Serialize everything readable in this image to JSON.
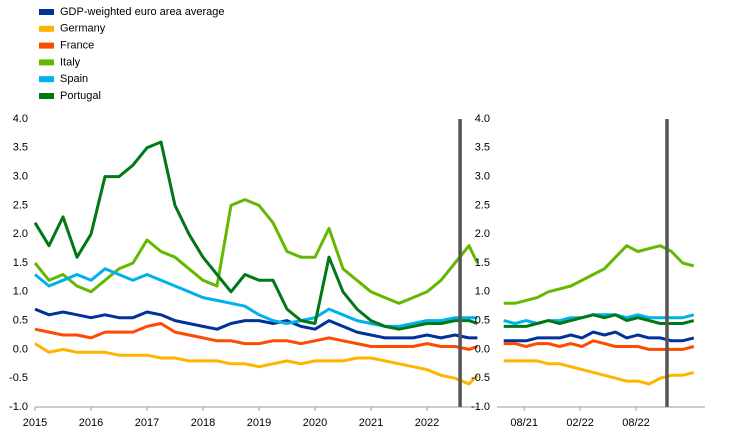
{
  "chart_data": [
    {
      "type": "line",
      "legend": "top-left",
      "x": [
        2015.0,
        2015.25,
        2015.5,
        2015.75,
        2016.0,
        2016.25,
        2016.5,
        2016.75,
        2017.0,
        2017.25,
        2017.5,
        2017.75,
        2018.0,
        2018.25,
        2018.5,
        2018.75,
        2019.0,
        2019.25,
        2019.5,
        2019.75,
        2020.0,
        2020.25,
        2020.5,
        2020.75,
        2021.0,
        2021.25,
        2021.5,
        2021.75,
        2022.0,
        2022.25,
        2022.5,
        2022.75,
        2022.9
      ],
      "series": [
        {
          "name": "GDP-weighted euro area average",
          "color": "#003299",
          "values": [
            0.7,
            0.6,
            0.65,
            0.6,
            0.55,
            0.6,
            0.55,
            0.55,
            0.65,
            0.6,
            0.5,
            0.45,
            0.4,
            0.35,
            0.45,
            0.5,
            0.5,
            0.45,
            0.5,
            0.4,
            0.35,
            0.5,
            0.4,
            0.3,
            0.25,
            0.2,
            0.2,
            0.2,
            0.25,
            0.2,
            0.25,
            0.2,
            0.2
          ]
        },
        {
          "name": "Germany",
          "color": "#ffb400",
          "values": [
            0.1,
            -0.05,
            0.0,
            -0.05,
            -0.05,
            -0.05,
            -0.1,
            -0.1,
            -0.1,
            -0.15,
            -0.15,
            -0.2,
            -0.2,
            -0.2,
            -0.25,
            -0.25,
            -0.3,
            -0.25,
            -0.2,
            -0.25,
            -0.2,
            -0.2,
            -0.2,
            -0.15,
            -0.15,
            -0.2,
            -0.25,
            -0.3,
            -0.35,
            -0.45,
            -0.5,
            -0.6,
            -0.45
          ]
        },
        {
          "name": "France",
          "color": "#ff4b00",
          "values": [
            0.35,
            0.3,
            0.25,
            0.25,
            0.2,
            0.3,
            0.3,
            0.3,
            0.4,
            0.45,
            0.3,
            0.25,
            0.2,
            0.15,
            0.15,
            0.1,
            0.1,
            0.15,
            0.15,
            0.1,
            0.15,
            0.2,
            0.15,
            0.1,
            0.05,
            0.05,
            0.05,
            0.05,
            0.1,
            0.05,
            0.05,
            0.0,
            0.05
          ]
        },
        {
          "name": "Italy",
          "color": "#65b800",
          "values": [
            1.5,
            1.2,
            1.3,
            1.1,
            1.0,
            1.2,
            1.4,
            1.5,
            1.9,
            1.7,
            1.6,
            1.4,
            1.2,
            1.1,
            2.5,
            2.6,
            2.5,
            2.2,
            1.7,
            1.6,
            1.6,
            2.1,
            1.4,
            1.2,
            1.0,
            0.9,
            0.8,
            0.9,
            1.0,
            1.2,
            1.5,
            1.8,
            1.5
          ]
        },
        {
          "name": "Spain",
          "color": "#00b1ea",
          "values": [
            1.3,
            1.1,
            1.2,
            1.3,
            1.2,
            1.4,
            1.3,
            1.2,
            1.3,
            1.2,
            1.1,
            1.0,
            0.9,
            0.85,
            0.8,
            0.75,
            0.6,
            0.5,
            0.45,
            0.5,
            0.55,
            0.7,
            0.6,
            0.5,
            0.45,
            0.4,
            0.4,
            0.45,
            0.5,
            0.5,
            0.55,
            0.55,
            0.55
          ]
        },
        {
          "name": "Portugal",
          "color": "#007816",
          "values": [
            2.2,
            1.8,
            2.3,
            1.6,
            2.0,
            3.0,
            3.0,
            3.2,
            3.5,
            3.6,
            2.5,
            2.0,
            1.6,
            1.3,
            1.0,
            1.3,
            1.2,
            1.2,
            0.7,
            0.5,
            0.45,
            1.6,
            1.0,
            0.7,
            0.5,
            0.4,
            0.35,
            0.4,
            0.45,
            0.45,
            0.5,
            0.5,
            0.45
          ]
        }
      ],
      "xlim": [
        2015,
        2022.91
      ],
      "xticks": [
        2015,
        2016,
        2017,
        2018,
        2019,
        2020,
        2021,
        2022
      ],
      "ylim": [
        -1.0,
        4.0
      ],
      "yticks": [
        {
          "value": -1,
          "label": "-1.0"
        },
        {
          "value": -0.5,
          "label": "-0.5"
        },
        {
          "value": 0,
          "label": "0.0"
        },
        {
          "value": 0.5,
          "label": "0.5"
        },
        {
          "value": 1,
          "label": "1.0"
        },
        {
          "value": 1.5,
          "label": "1.5"
        },
        {
          "value": 2,
          "label": "2.0"
        },
        {
          "value": 2.5,
          "label": "2.5"
        },
        {
          "value": 3,
          "label": "3.0"
        },
        {
          "value": 3.5,
          "label": "3.5"
        },
        {
          "value": 4,
          "label": "4.0"
        }
      ],
      "marker_x": 2022.59
    },
    {
      "type": "line",
      "x": [
        2021.4,
        2021.5,
        2021.6,
        2021.7,
        2021.8,
        2021.9,
        2022.0,
        2022.1,
        2022.2,
        2022.3,
        2022.4,
        2022.5,
        2022.6,
        2022.7,
        2022.8,
        2022.9,
        2023.0,
        2023.1
      ],
      "series": [
        {
          "color": "#003299",
          "values": [
            0.15,
            0.15,
            0.15,
            0.2,
            0.2,
            0.2,
            0.25,
            0.2,
            0.3,
            0.25,
            0.3,
            0.2,
            0.25,
            0.2,
            0.2,
            0.15,
            0.15,
            0.2
          ]
        },
        {
          "color": "#ffb400",
          "values": [
            -0.2,
            -0.2,
            -0.2,
            -0.2,
            -0.25,
            -0.25,
            -0.3,
            -0.35,
            -0.4,
            -0.45,
            -0.5,
            -0.55,
            -0.55,
            -0.6,
            -0.5,
            -0.45,
            -0.45,
            -0.4
          ]
        },
        {
          "color": "#ff4b00",
          "values": [
            0.1,
            0.1,
            0.05,
            0.1,
            0.1,
            0.05,
            0.1,
            0.05,
            0.15,
            0.1,
            0.05,
            0.05,
            0.05,
            0.0,
            0.0,
            0.0,
            0.0,
            0.05
          ]
        },
        {
          "color": "#65b800",
          "values": [
            0.8,
            0.8,
            0.85,
            0.9,
            1.0,
            1.05,
            1.1,
            1.2,
            1.3,
            1.4,
            1.6,
            1.8,
            1.7,
            1.75,
            1.8,
            1.7,
            1.5,
            1.45
          ]
        },
        {
          "color": "#00b1ea",
          "values": [
            0.5,
            0.45,
            0.5,
            0.45,
            0.5,
            0.5,
            0.55,
            0.55,
            0.6,
            0.6,
            0.6,
            0.55,
            0.6,
            0.55,
            0.55,
            0.55,
            0.55,
            0.6
          ]
        },
        {
          "color": "#007816",
          "values": [
            0.4,
            0.4,
            0.4,
            0.45,
            0.5,
            0.45,
            0.5,
            0.55,
            0.6,
            0.55,
            0.6,
            0.5,
            0.55,
            0.5,
            0.45,
            0.45,
            0.45,
            0.5
          ]
        }
      ],
      "xlim": [
        2021.34,
        2023.2
      ],
      "xticks": [
        {
          "value": 2021.583,
          "label": "08/21"
        },
        {
          "value": 2022.083,
          "label": "02/22"
        },
        {
          "value": 2022.583,
          "label": "08/22"
        }
      ],
      "ylim": [
        -1.0,
        4.0
      ],
      "yticks": [
        {
          "value": -1,
          "label": "-1.0"
        },
        {
          "value": -0.5,
          "label": "-0.5"
        },
        {
          "value": 0,
          "label": "0.0"
        },
        {
          "value": 0.5,
          "label": "0.5"
        },
        {
          "value": 1,
          "label": "1.0"
        },
        {
          "value": 1.5,
          "label": "1.5"
        },
        {
          "value": 2,
          "label": "2.0"
        },
        {
          "value": 2.5,
          "label": "2.5"
        },
        {
          "value": 3,
          "label": "3.0"
        },
        {
          "value": 3.5,
          "label": "3.5"
        },
        {
          "value": 4,
          "label": "4.0"
        }
      ],
      "marker_x": 2022.86
    }
  ]
}
